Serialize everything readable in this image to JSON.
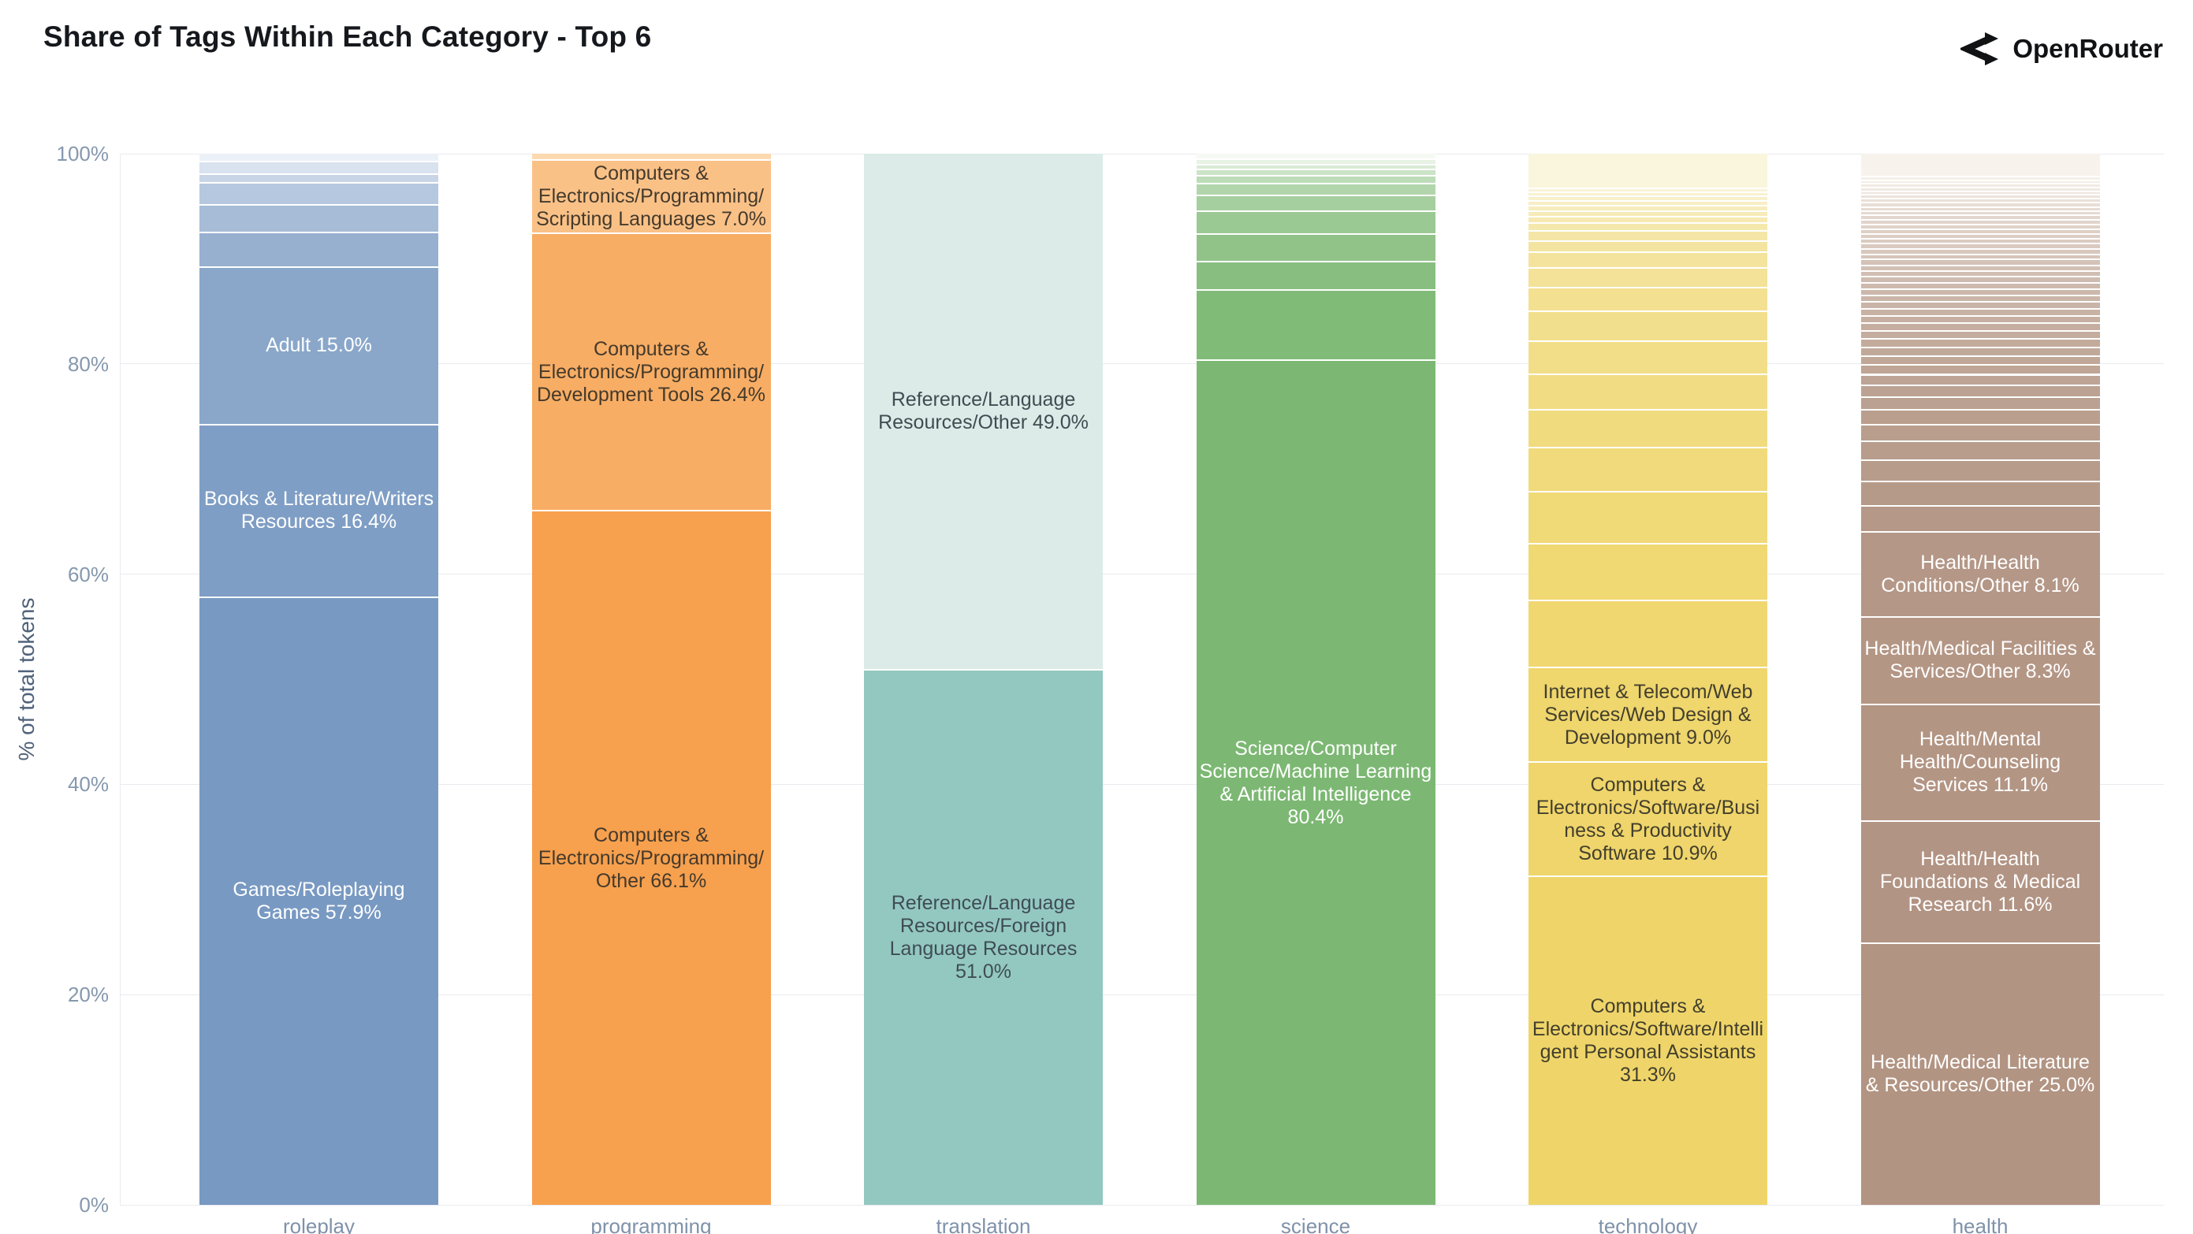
{
  "header": {
    "title": "Share of Tags Within Each Category - Top 6",
    "logo_text": "OpenRouter"
  },
  "y_axis": {
    "title": "% of total tokens",
    "tick_labels": [
      "0%",
      "20%",
      "40%",
      "60%",
      "80%",
      "100%"
    ],
    "tick_values": [
      0,
      20,
      40,
      60,
      80,
      100
    ]
  },
  "chart_data": {
    "type": "bar",
    "stacked": true,
    "title": "Share of Tags Within Each Category - Top 6",
    "xlabel": "",
    "ylabel": "% of total tokens",
    "ylim": [
      0,
      100
    ],
    "grid": "horizontal-20pct",
    "legend": "none",
    "categories": [
      "roleplay",
      "programming",
      "translation",
      "science",
      "technology",
      "health"
    ],
    "bars": [
      {
        "category": "roleplay",
        "color_bottom": "#7899c2",
        "color_top": "#ecf1f8",
        "label_color": "#ffffff",
        "segments": [
          {
            "label": "Games/Roleplaying Games 57.9%",
            "value": 57.9
          },
          {
            "label": "Books & Literature/Writers Resources 16.4%",
            "value": 16.4
          },
          {
            "label": "Adult 15.0%",
            "value": 15.0
          },
          {
            "label": null,
            "value": 3.3
          },
          {
            "label": null,
            "value": 2.6
          },
          {
            "label": null,
            "value": 2.1
          },
          {
            "label": null,
            "value": 0.8
          },
          {
            "label": null,
            "value": 1.2
          },
          {
            "label": null,
            "value": 0.7
          }
        ]
      },
      {
        "category": "programming",
        "color_bottom": "#f7a04e",
        "color_top": "#fdd9b0",
        "label_color": "#443a2c",
        "segments": [
          {
            "label": "Computers & Electronics/Programming/Other 66.1%",
            "value": 66.1
          },
          {
            "label": "Computers & Electronics/Programming/Development Tools 26.4%",
            "value": 26.4
          },
          {
            "label": "Computers & Electronics/Programming/Scripting Languages 7.0%",
            "value": 7.0
          },
          {
            "label": null,
            "value": 0.5
          }
        ]
      },
      {
        "category": "translation",
        "color_bottom": "#93c8c1",
        "color_top": "#dcebe7",
        "label_color": "#3f4d53",
        "segments": [
          {
            "label": "Reference/Language Resources/Foreign Language Resources 51.0%",
            "value": 51.0
          },
          {
            "label": "Reference/Language Resources/Other 49.0%",
            "value": 49.0
          }
        ]
      },
      {
        "category": "science",
        "color_bottom": "#7cb873",
        "color_top": "#f6faf4",
        "label_color": "#ffffff",
        "segments": [
          {
            "label": "Science/Computer Science/Machine Learning & Artificial Intelligence 80.4%",
            "value": 80.4
          },
          {
            "label": null,
            "value": 6.7
          },
          {
            "label": null,
            "value": 2.7
          },
          {
            "label": null,
            "value": 2.6
          },
          {
            "label": null,
            "value": 2.2
          },
          {
            "label": null,
            "value": 1.5
          },
          {
            "label": null,
            "value": 1.1
          },
          {
            "label": null,
            "value": 0.75
          },
          {
            "label": null,
            "value": 0.6
          },
          {
            "label": null,
            "value": 0.5
          },
          {
            "label": null,
            "value": 0.5
          },
          {
            "label": null,
            "value": 0.45
          }
        ]
      },
      {
        "category": "technology",
        "color_bottom": "#efd569",
        "color_top": "#faf5dd",
        "label_color": "#433f2d",
        "segments": [
          {
            "label": "Computers & Electronics/Software/Intelligent Personal Assistants 31.3%",
            "value": 31.3
          },
          {
            "label": "Computers & Electronics/Software/Business & Productivity Software 10.9%",
            "value": 10.9
          },
          {
            "label": "Internet & Telecom/Web Services/Web Design & Development 9.0%",
            "value": 9.0
          },
          {
            "label": null,
            "value": 6.4
          },
          {
            "label": null,
            "value": 5.4
          },
          {
            "label": null,
            "value": 4.9
          },
          {
            "label": null,
            "value": 4.2
          },
          {
            "label": null,
            "value": 3.6
          },
          {
            "label": null,
            "value": 3.4
          },
          {
            "label": null,
            "value": 3.1
          },
          {
            "label": null,
            "value": 2.85
          },
          {
            "label": null,
            "value": 2.25
          },
          {
            "label": null,
            "value": 1.9
          },
          {
            "label": null,
            "value": 1.5
          },
          {
            "label": null,
            "value": 1.05
          },
          {
            "label": null,
            "value": 1.0
          },
          {
            "label": null,
            "value": 0.75
          },
          {
            "label": null,
            "value": 0.6
          },
          {
            "label": null,
            "value": 0.5
          },
          {
            "label": null,
            "value": 0.5
          },
          {
            "label": null,
            "value": 0.5
          },
          {
            "label": null,
            "value": 0.4
          },
          {
            "label": null,
            "value": 0.4
          },
          {
            "label": null,
            "value": 0.4
          },
          {
            "label": null,
            "value": 3.2
          }
        ]
      },
      {
        "category": "health",
        "color_bottom": "#b29483",
        "color_top": "#f7f2ec",
        "label_color": "#ffffff",
        "segments": [
          {
            "label": "Health/Medical Literature & Resources/Other 25.0%",
            "value": 25.0
          },
          {
            "label": "Health/Health Foundations & Medical Research 11.6%",
            "value": 11.6
          },
          {
            "label": "Health/Mental Health/Counseling Services 11.1%",
            "value": 11.1
          },
          {
            "label": "Health/Medical Facilities & Services/Other 8.3%",
            "value": 8.3
          },
          {
            "label": "Health/Health Conditions/Other 8.1%",
            "value": 8.1
          },
          {
            "label": null,
            "value": 2.5
          },
          {
            "label": null,
            "value": 2.3
          },
          {
            "label": null,
            "value": 2.0
          },
          {
            "label": null,
            "value": 1.8
          },
          {
            "label": null,
            "value": 1.6
          },
          {
            "label": null,
            "value": 1.4
          },
          {
            "label": null,
            "value": 1.25
          },
          {
            "label": null,
            "value": 1.1
          },
          {
            "label": null,
            "value": 1.0
          },
          {
            "label": null,
            "value": 0.9
          },
          {
            "label": null,
            "value": 0.85
          },
          {
            "label": null,
            "value": 0.85
          },
          {
            "label": null,
            "value": 0.8
          },
          {
            "label": null,
            "value": 0.75
          },
          {
            "label": null,
            "value": 0.75
          },
          {
            "label": null,
            "value": 0.7
          },
          {
            "label": null,
            "value": 0.65
          },
          {
            "label": null,
            "value": 0.65
          },
          {
            "label": null,
            "value": 0.65
          },
          {
            "label": null,
            "value": 0.6
          },
          {
            "label": null,
            "value": 0.6
          },
          {
            "label": null,
            "value": 0.55
          },
          {
            "label": null,
            "value": 0.55
          },
          {
            "label": null,
            "value": 0.55
          },
          {
            "label": null,
            "value": 0.55
          },
          {
            "label": null,
            "value": 0.5
          },
          {
            "label": null,
            "value": 0.5
          },
          {
            "label": null,
            "value": 0.5
          },
          {
            "label": null,
            "value": 0.45
          },
          {
            "label": null,
            "value": 0.45
          },
          {
            "label": null,
            "value": 0.45
          },
          {
            "label": null,
            "value": 0.45
          },
          {
            "label": null,
            "value": 0.45
          },
          {
            "label": null,
            "value": 0.45
          },
          {
            "label": null,
            "value": 0.4
          },
          {
            "label": null,
            "value": 0.4
          },
          {
            "label": null,
            "value": 0.4
          },
          {
            "label": null,
            "value": 0.4
          },
          {
            "label": null,
            "value": 0.35
          },
          {
            "label": null,
            "value": 0.35
          },
          {
            "label": null,
            "value": 0.35
          },
          {
            "label": null,
            "value": 0.35
          },
          {
            "label": null,
            "value": 0.35
          },
          {
            "label": null,
            "value": 0.35
          },
          {
            "label": null,
            "value": 2.1
          }
        ]
      }
    ]
  }
}
